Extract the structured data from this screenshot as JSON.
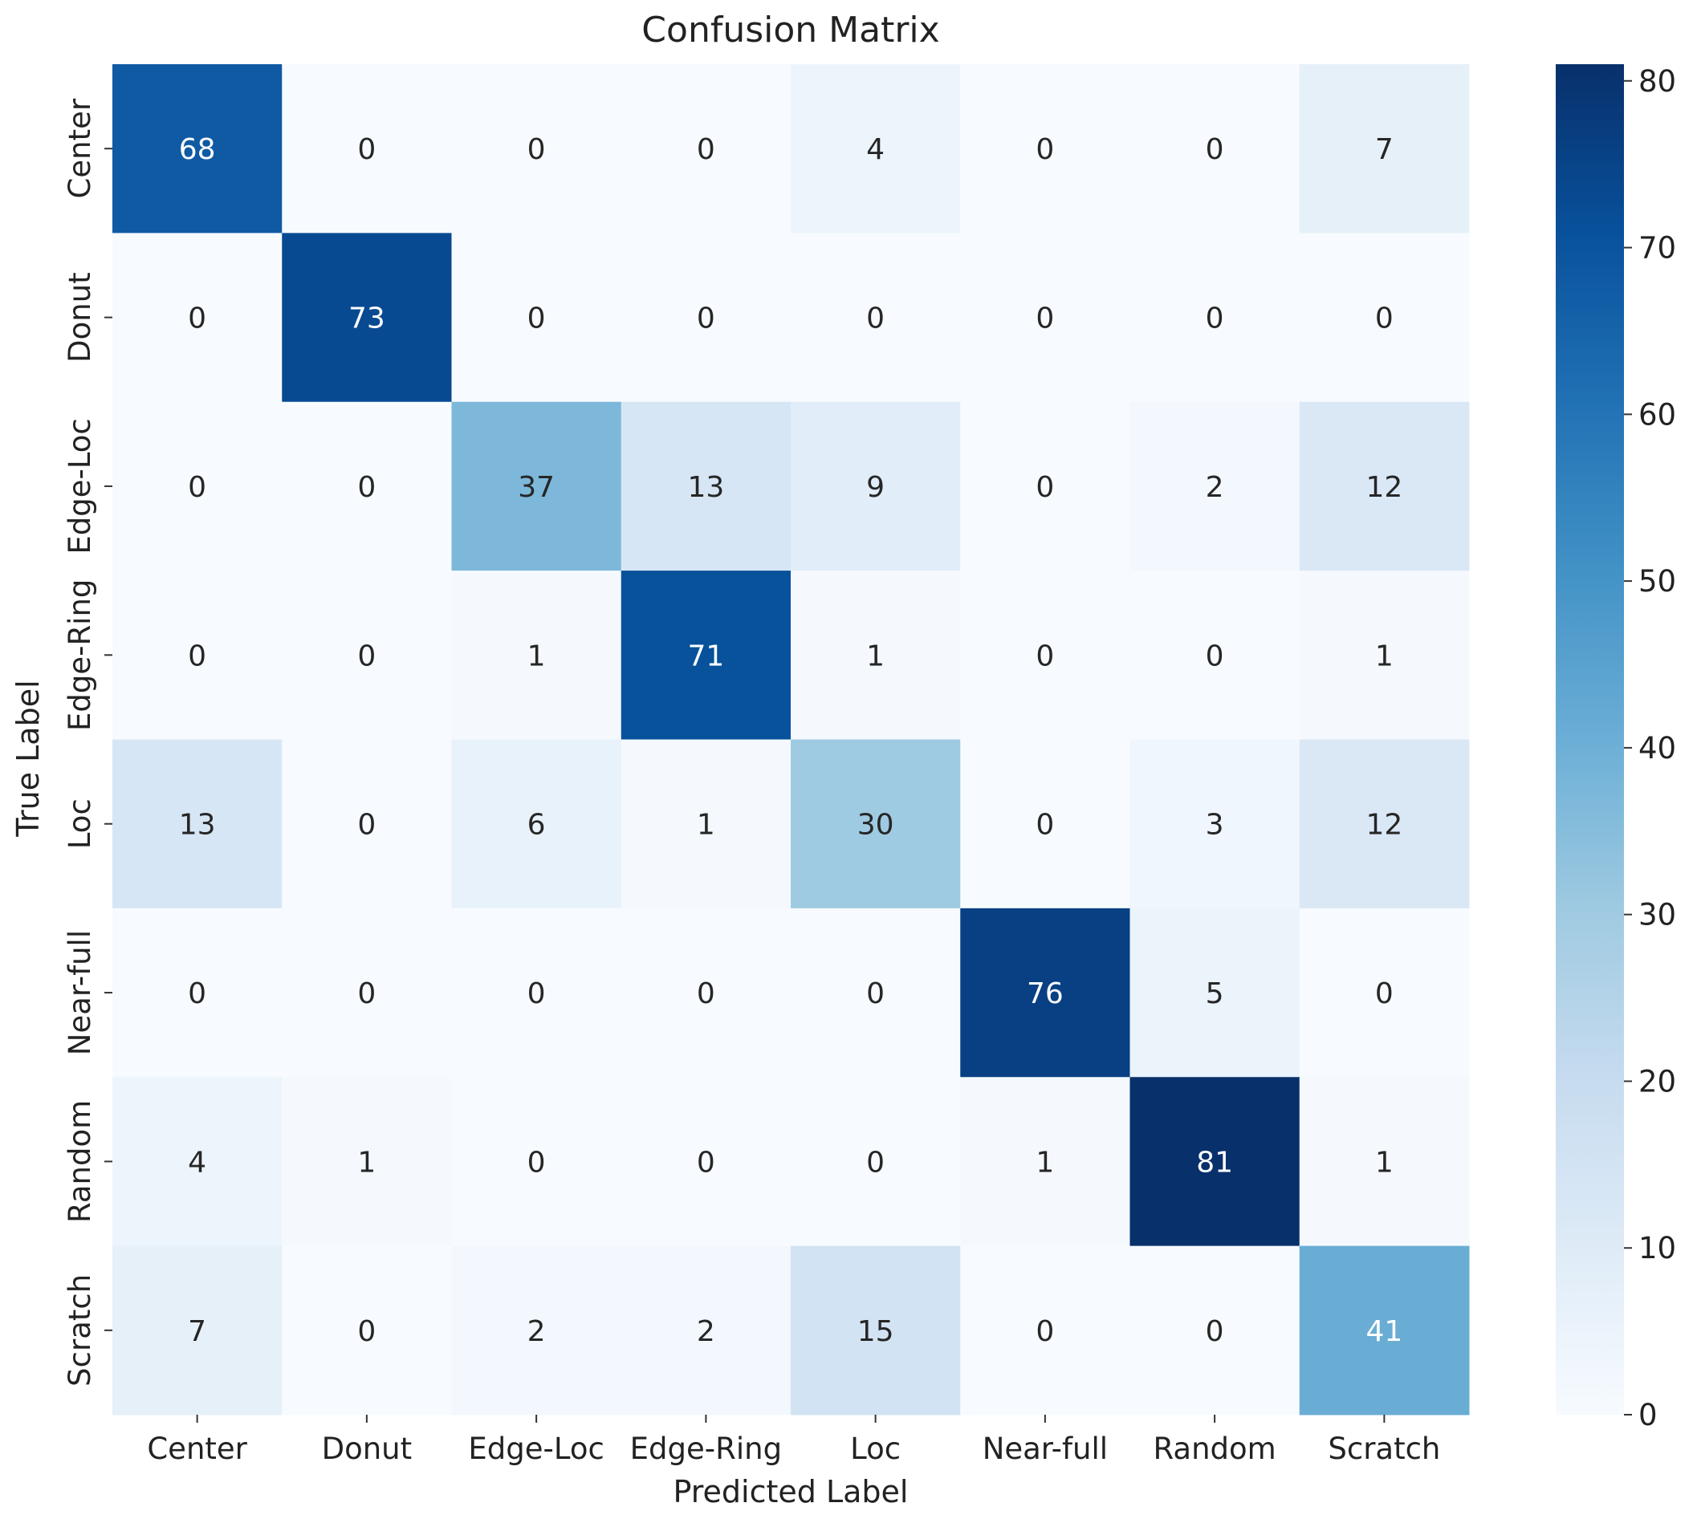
{
  "chart_data": {
    "type": "heatmap",
    "title": "Confusion Matrix",
    "xlabel": "Predicted Label",
    "ylabel": "True Label",
    "x_categories": [
      "Center",
      "Donut",
      "Edge-Loc",
      "Edge-Ring",
      "Loc",
      "Near-full",
      "Random",
      "Scratch"
    ],
    "y_categories": [
      "Center",
      "Donut",
      "Edge-Loc",
      "Edge-Ring",
      "Loc",
      "Near-full",
      "Random",
      "Scratch"
    ],
    "matrix": [
      [
        68,
        0,
        0,
        0,
        4,
        0,
        0,
        7
      ],
      [
        0,
        73,
        0,
        0,
        0,
        0,
        0,
        0
      ],
      [
        0,
        0,
        37,
        13,
        9,
        0,
        2,
        12
      ],
      [
        0,
        0,
        1,
        71,
        1,
        0,
        0,
        1
      ],
      [
        13,
        0,
        6,
        1,
        30,
        0,
        3,
        12
      ],
      [
        0,
        0,
        0,
        0,
        0,
        76,
        5,
        0
      ],
      [
        4,
        1,
        0,
        0,
        0,
        1,
        81,
        1
      ],
      [
        7,
        0,
        2,
        2,
        15,
        0,
        0,
        41
      ]
    ],
    "colormap": "Blues",
    "vmin": 0,
    "vmax": 81,
    "colorbar_ticks": [
      0,
      10,
      20,
      30,
      40,
      50,
      60,
      70,
      80
    ]
  }
}
